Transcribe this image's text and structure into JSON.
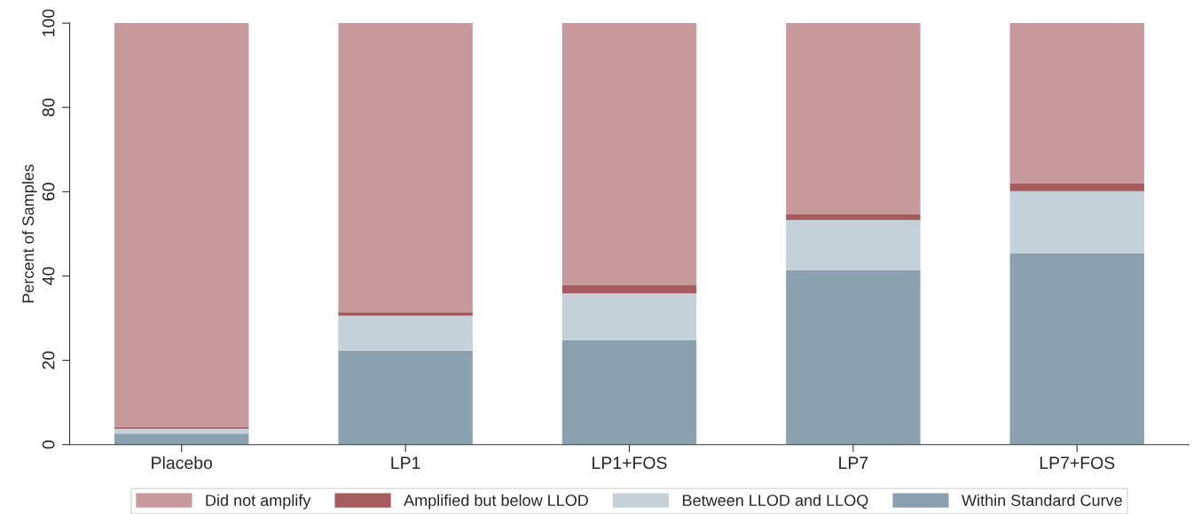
{
  "chart_data": {
    "type": "bar",
    "stacked": true,
    "ylabel": "Percent of Samples",
    "categories": [
      "Placebo",
      "LP1",
      "LP1+FOS",
      "LP7",
      "LP7+FOS"
    ],
    "series": [
      {
        "name": "Within Standard Curve",
        "color": "#8ba1af",
        "values": [
          2.6,
          22.3,
          24.8,
          41.4,
          45.4
        ]
      },
      {
        "name": "Between LLOD and LLOQ",
        "color": "#c4d1d9",
        "values": [
          1.2,
          8.3,
          11.1,
          11.9,
          14.7
        ]
      },
      {
        "name": "Amplified but below LLOD",
        "color": "#a65c5f",
        "values": [
          0.4,
          0.8,
          1.9,
          1.3,
          1.9
        ]
      },
      {
        "name": "Did not amplify",
        "color": "#c8999c",
        "values": [
          95.8,
          68.6,
          62.2,
          45.4,
          38.0
        ]
      }
    ],
    "ylim": [
      0,
      100
    ],
    "yticks": [
      0,
      20,
      40,
      60,
      80,
      100
    ],
    "grid": false,
    "legend": "bottom"
  }
}
